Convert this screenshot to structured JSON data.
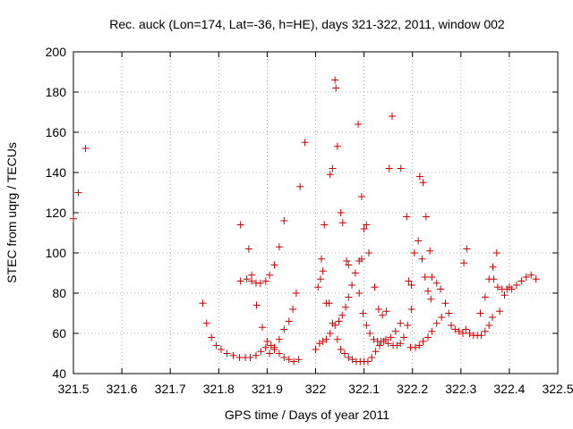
{
  "chart_data": {
    "type": "scatter",
    "title": "Rec. auck (Lon=174, Lat=-36, h=HE), days 321-322, 2011, window 002",
    "xlabel": "GPS time / Days of year 2011",
    "ylabel": "STEC from uqrg / TECUs",
    "xlim": [
      321.5,
      322.5
    ],
    "ylim": [
      40,
      200
    ],
    "xticks": [
      321.5,
      321.6,
      321.7,
      321.8,
      321.9,
      322.0,
      322.1,
      322.2,
      322.3,
      322.4,
      322.5
    ],
    "xtick_labels": [
      "321.5",
      "321.6",
      "321.7",
      "321.8",
      "321.9",
      "322",
      "322.1",
      "322.2",
      "322.3",
      "322.4",
      "322.5"
    ],
    "yticks": [
      40,
      60,
      80,
      100,
      120,
      140,
      160,
      180,
      200
    ],
    "ytick_labels": [
      "40",
      "60",
      "80",
      "100",
      "120",
      "140",
      "160",
      "180",
      "200"
    ],
    "grid": true,
    "marker": "+",
    "marker_color": "#cc0000",
    "series": [
      {
        "name": "STEC",
        "points": [
          [
            321.5,
            117
          ],
          [
            321.51,
            130
          ],
          [
            321.525,
            152
          ],
          [
            321.767,
            75
          ],
          [
            321.775,
            65
          ],
          [
            321.785,
            58
          ],
          [
            321.795,
            54
          ],
          [
            321.805,
            52
          ],
          [
            321.817,
            50
          ],
          [
            321.83,
            49
          ],
          [
            321.843,
            48
          ],
          [
            321.855,
            48
          ],
          [
            321.865,
            48
          ],
          [
            321.877,
            49
          ],
          [
            321.887,
            51
          ],
          [
            321.897,
            53
          ],
          [
            321.845,
            114
          ],
          [
            321.862,
            102
          ],
          [
            321.868,
            89
          ],
          [
            321.845,
            86
          ],
          [
            321.858,
            87
          ],
          [
            321.868,
            86
          ],
          [
            321.877,
            85
          ],
          [
            321.886,
            85
          ],
          [
            321.897,
            86
          ],
          [
            321.905,
            89
          ],
          [
            321.915,
            94
          ],
          [
            321.925,
            103
          ],
          [
            321.935,
            116
          ],
          [
            321.878,
            74
          ],
          [
            321.89,
            63
          ],
          [
            321.9,
            56
          ],
          [
            321.908,
            54
          ],
          [
            321.915,
            52
          ],
          [
            321.925,
            50
          ],
          [
            321.935,
            48
          ],
          [
            321.945,
            47
          ],
          [
            321.955,
            46
          ],
          [
            321.965,
            47
          ],
          [
            321.905,
            50
          ],
          [
            321.915,
            53
          ],
          [
            321.925,
            57
          ],
          [
            321.935,
            62
          ],
          [
            321.945,
            66
          ],
          [
            321.953,
            72
          ],
          [
            321.96,
            80
          ],
          [
            321.968,
            133
          ],
          [
            321.978,
            155
          ],
          [
            322.0,
            52
          ],
          [
            322.008,
            55
          ],
          [
            322.015,
            56
          ],
          [
            322.022,
            57
          ],
          [
            322.03,
            60
          ],
          [
            322.04,
            64
          ],
          [
            322.048,
            66
          ],
          [
            322.055,
            69
          ],
          [
            322.062,
            73
          ],
          [
            322.068,
            78
          ],
          [
            322.075,
            84
          ],
          [
            322.082,
            90
          ],
          [
            322.09,
            96
          ],
          [
            322.005,
            83
          ],
          [
            322.01,
            87
          ],
          [
            322.015,
            91
          ],
          [
            322.022,
            75
          ],
          [
            322.028,
            75
          ],
          [
            322.012,
            97
          ],
          [
            322.018,
            114
          ],
          [
            322.03,
            139
          ],
          [
            322.035,
            142
          ],
          [
            322.04,
            186
          ],
          [
            322.042,
            182
          ],
          [
            322.045,
            153
          ],
          [
            322.052,
            120
          ],
          [
            322.056,
            115
          ],
          [
            322.064,
            96
          ],
          [
            322.068,
            94
          ],
          [
            322.035,
            65
          ],
          [
            322.045,
            57
          ],
          [
            322.052,
            52
          ],
          [
            322.06,
            50
          ],
          [
            322.068,
            48
          ],
          [
            322.076,
            47
          ],
          [
            322.084,
            46
          ],
          [
            322.092,
            46
          ],
          [
            322.1,
            46
          ],
          [
            322.108,
            46
          ],
          [
            322.116,
            48
          ],
          [
            322.124,
            51
          ],
          [
            322.132,
            54
          ],
          [
            322.14,
            56
          ],
          [
            322.088,
            164
          ],
          [
            322.095,
            128
          ],
          [
            322.1,
            112
          ],
          [
            322.105,
            114
          ],
          [
            322.11,
            100
          ],
          [
            322.095,
            97
          ],
          [
            322.09,
            80
          ],
          [
            322.098,
            70
          ],
          [
            322.105,
            64
          ],
          [
            322.112,
            60
          ],
          [
            322.12,
            57
          ],
          [
            322.128,
            56
          ],
          [
            322.135,
            56
          ],
          [
            322.145,
            57
          ],
          [
            322.155,
            58
          ],
          [
            322.165,
            61
          ],
          [
            322.175,
            65
          ],
          [
            322.122,
            83
          ],
          [
            322.13,
            72
          ],
          [
            322.138,
            69
          ],
          [
            322.146,
            71
          ],
          [
            322.152,
            142
          ],
          [
            322.158,
            168
          ],
          [
            322.176,
            142
          ],
          [
            322.188,
            118
          ],
          [
            322.15,
            55
          ],
          [
            322.16,
            54
          ],
          [
            322.168,
            54
          ],
          [
            322.175,
            55
          ],
          [
            322.182,
            58
          ],
          [
            322.19,
            64
          ],
          [
            322.198,
            72
          ],
          [
            322.192,
            86
          ],
          [
            322.198,
            84
          ],
          [
            322.204,
            100
          ],
          [
            322.212,
            106
          ],
          [
            322.22,
            97
          ],
          [
            322.226,
            88
          ],
          [
            322.232,
            81
          ],
          [
            322.238,
            77
          ],
          [
            322.196,
            53
          ],
          [
            322.206,
            53
          ],
          [
            322.214,
            54
          ],
          [
            322.222,
            56
          ],
          [
            322.232,
            58
          ],
          [
            322.24,
            61
          ],
          [
            322.25,
            65
          ],
          [
            322.26,
            68
          ],
          [
            322.215,
            138
          ],
          [
            322.222,
            135
          ],
          [
            322.228,
            118
          ],
          [
            322.236,
            101
          ],
          [
            322.24,
            88
          ],
          [
            322.25,
            85
          ],
          [
            322.258,
            82
          ],
          [
            322.268,
            75
          ],
          [
            322.275,
            70
          ],
          [
            322.28,
            64
          ],
          [
            322.288,
            62
          ],
          [
            322.296,
            61
          ],
          [
            322.304,
            60
          ],
          [
            322.306,
            95
          ],
          [
            322.312,
            102
          ],
          [
            322.31,
            62
          ],
          [
            322.318,
            60
          ],
          [
            322.326,
            59
          ],
          [
            322.334,
            59
          ],
          [
            322.342,
            59
          ],
          [
            322.35,
            61
          ],
          [
            322.358,
            64
          ],
          [
            322.365,
            68
          ],
          [
            322.34,
            70
          ],
          [
            322.35,
            78
          ],
          [
            322.358,
            87
          ],
          [
            322.366,
            93
          ],
          [
            322.374,
            100
          ],
          [
            322.368,
            87
          ],
          [
            322.376,
            83
          ],
          [
            322.385,
            82
          ],
          [
            322.395,
            82
          ],
          [
            322.405,
            82
          ],
          [
            322.415,
            84
          ],
          [
            322.425,
            86
          ],
          [
            322.435,
            88
          ],
          [
            322.445,
            89
          ],
          [
            322.455,
            87
          ],
          [
            322.38,
            71
          ],
          [
            322.39,
            79
          ],
          [
            322.4,
            83
          ]
        ]
      }
    ]
  }
}
